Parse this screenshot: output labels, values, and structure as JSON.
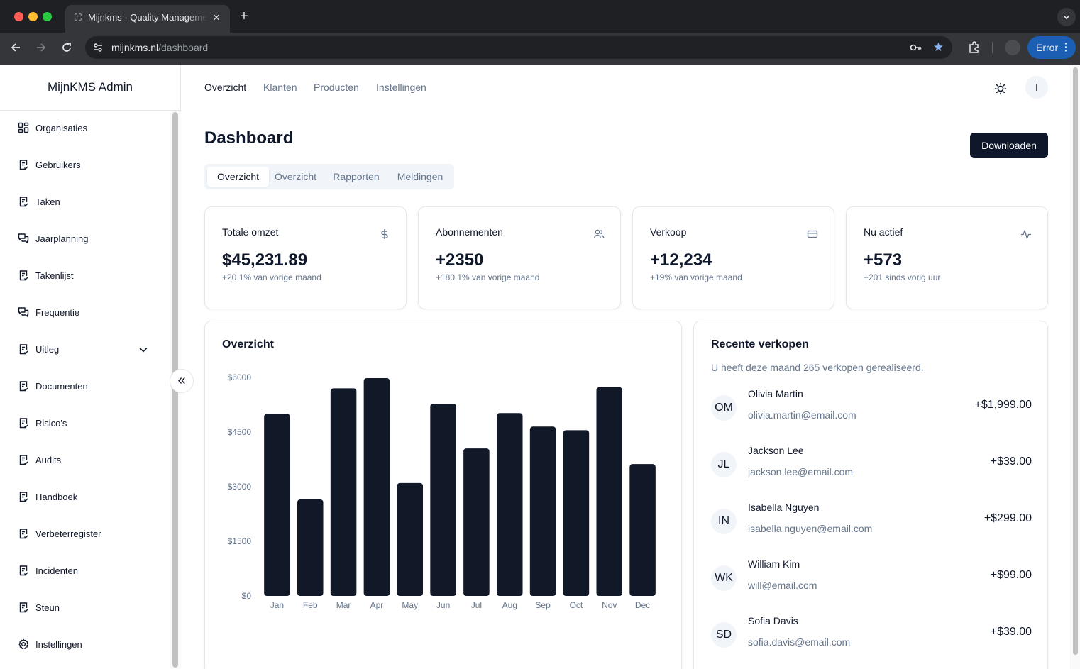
{
  "browser": {
    "tab_title": "Mijnkms - Quality Management",
    "url_host": "mijnkms.nl",
    "url_path": "/dashboard",
    "error_label": "Error"
  },
  "sidebar": {
    "brand": "MijnKMS Admin",
    "items": [
      {
        "label": "Organisaties",
        "icon": "layout-grid-icon"
      },
      {
        "label": "Gebruikers",
        "icon": "clipboard-check-icon"
      },
      {
        "label": "Taken",
        "icon": "clipboard-check-icon"
      },
      {
        "label": "Jaarplanning",
        "icon": "messages-icon"
      },
      {
        "label": "Takenlijst",
        "icon": "clipboard-check-icon"
      },
      {
        "label": "Frequentie",
        "icon": "messages-icon"
      },
      {
        "label": "Uitleg",
        "icon": "clipboard-check-icon"
      },
      {
        "label": "Documenten",
        "icon": "clipboard-check-icon"
      },
      {
        "label": "Risico's",
        "icon": "clipboard-check-icon"
      },
      {
        "label": "Audits",
        "icon": "clipboard-check-icon"
      },
      {
        "label": "Handboek",
        "icon": "clipboard-check-icon"
      },
      {
        "label": "Verbeterregister",
        "icon": "clipboard-check-icon"
      },
      {
        "label": "Incidenten",
        "icon": "clipboard-check-icon"
      },
      {
        "label": "Steun",
        "icon": "clipboard-check-icon"
      },
      {
        "label": "Instellingen",
        "icon": "settings-icon"
      }
    ]
  },
  "topnav": {
    "links": [
      "Overzicht",
      "Klanten",
      "Producten",
      "Instellingen"
    ],
    "avatar": "I"
  },
  "main": {
    "title": "Dashboard",
    "download_label": "Downloaden",
    "tabs": [
      "Overzicht",
      "Overzicht",
      "Rapporten",
      "Meldingen"
    ]
  },
  "stats": [
    {
      "title": "Totale omzet",
      "value": "$45,231.89",
      "sub": "+20.1% van vorige maand",
      "icon": "dollar-icon"
    },
    {
      "title": "Abonnementen",
      "value": "+2350",
      "sub": "+180.1% van vorige maand",
      "icon": "users-icon"
    },
    {
      "title": "Verkoop",
      "value": "+12,234",
      "sub": "+19% van vorige maand",
      "icon": "credit-card-icon"
    },
    {
      "title": "Nu actief",
      "value": "+573",
      "sub": "+201 sinds vorig uur",
      "icon": "activity-icon"
    }
  ],
  "overview": {
    "title": "Overzicht"
  },
  "chart_data": {
    "type": "bar",
    "categories": [
      "Jan",
      "Feb",
      "Mar",
      "Apr",
      "May",
      "Jun",
      "Jul",
      "Aug",
      "Sep",
      "Oct",
      "Nov",
      "Dec"
    ],
    "values": [
      5000,
      2650,
      5700,
      5980,
      3100,
      5280,
      4050,
      5020,
      4650,
      4550,
      5730,
      3620
    ],
    "yticks": [
      "$0",
      "$1500",
      "$3000",
      "$4500",
      "$6000"
    ],
    "ylim": [
      0,
      6000
    ],
    "bar_color": "#111827",
    "grid": false
  },
  "recent_sales": {
    "title": "Recente verkopen",
    "description": "U heeft deze maand 265 verkopen gerealiseerd.",
    "items": [
      {
        "initials": "OM",
        "name": "Olivia Martin",
        "email": "olivia.martin@email.com",
        "amount": "+$1,999.00"
      },
      {
        "initials": "JL",
        "name": "Jackson Lee",
        "email": "jackson.lee@email.com",
        "amount": "+$39.00"
      },
      {
        "initials": "IN",
        "name": "Isabella Nguyen",
        "email": "isabella.nguyen@email.com",
        "amount": "+$299.00"
      },
      {
        "initials": "WK",
        "name": "William Kim",
        "email": "will@email.com",
        "amount": "+$99.00"
      },
      {
        "initials": "SD",
        "name": "Sofia Davis",
        "email": "sofia.davis@email.com",
        "amount": "+$39.00"
      }
    ]
  },
  "colors": {
    "primary": "#0f172a",
    "muted": "#64748b",
    "border": "#e5e7eb"
  }
}
